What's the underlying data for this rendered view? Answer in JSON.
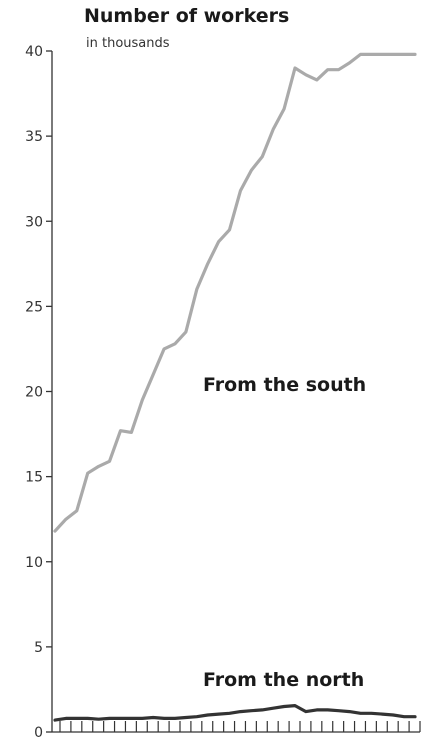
{
  "chart_data": {
    "type": "line",
    "title": "Number of workers",
    "subtitle": "in thousands",
    "xlabel": "",
    "ylabel": "",
    "ylim": [
      0,
      40
    ],
    "yticks": [
      "0",
      "5",
      "10",
      "15",
      "20",
      "25",
      "30",
      "35",
      "40"
    ],
    "x": [
      1,
      2,
      3,
      4,
      5,
      6,
      7,
      8,
      9,
      10,
      11,
      12,
      13,
      14,
      15,
      16,
      17,
      18,
      19,
      20,
      21,
      22,
      23,
      24,
      25,
      26,
      27,
      28,
      29,
      30,
      31,
      32,
      33,
      34
    ],
    "grid": false,
    "legend": "none",
    "series": [
      {
        "name": "From the south",
        "color": "#aaaaaa",
        "values": [
          11.8,
          12.5,
          13.0,
          15.2,
          15.6,
          15.9,
          17.7,
          17.6,
          19.5,
          21.0,
          22.5,
          22.8,
          23.5,
          26.0,
          27.5,
          28.8,
          29.5,
          31.8,
          33.0,
          33.8,
          35.4,
          36.6,
          39.0,
          38.6,
          38.3,
          38.9,
          38.9,
          39.3,
          39.8,
          39.8,
          39.8,
          39.8,
          39.8,
          39.8
        ]
      },
      {
        "name": "From the north",
        "color": "#333333",
        "values": [
          0.7,
          0.8,
          0.8,
          0.8,
          0.75,
          0.8,
          0.8,
          0.8,
          0.8,
          0.85,
          0.8,
          0.8,
          0.85,
          0.9,
          1.0,
          1.05,
          1.1,
          1.2,
          1.25,
          1.3,
          1.4,
          1.5,
          1.55,
          1.2,
          1.3,
          1.3,
          1.25,
          1.2,
          1.1,
          1.1,
          1.05,
          1.0,
          0.9,
          0.9
        ]
      }
    ]
  }
}
